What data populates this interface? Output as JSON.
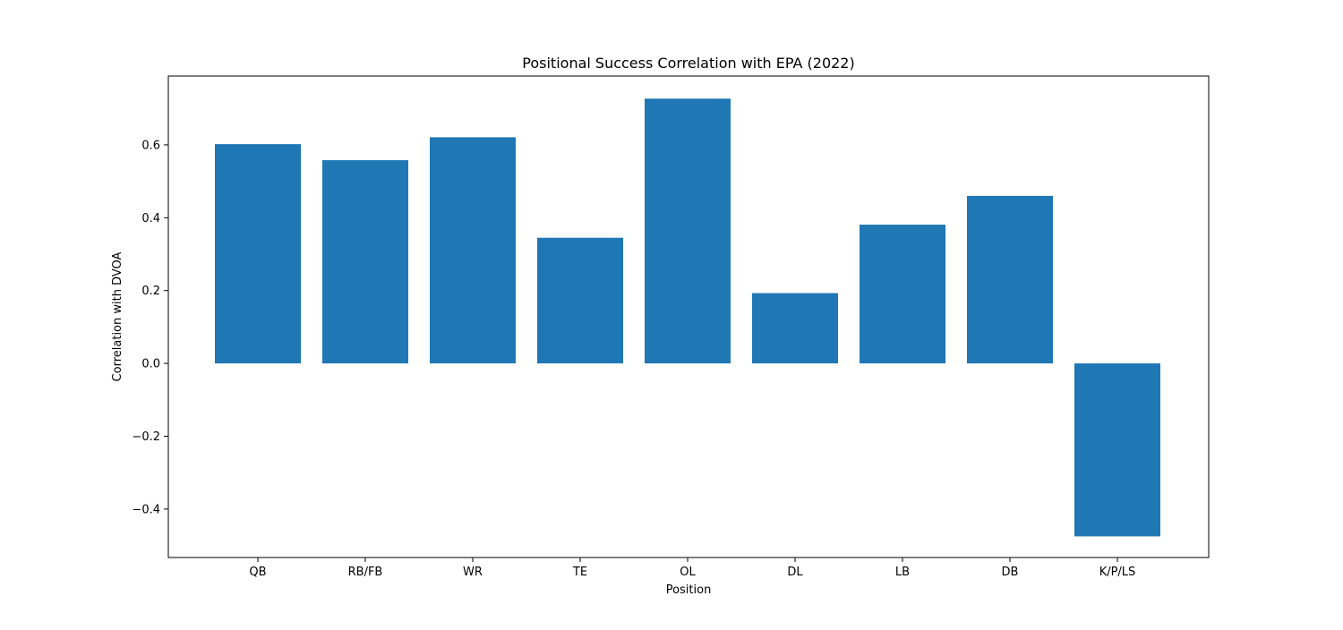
{
  "chart_data": {
    "type": "bar",
    "title": "Positional Success Correlation with EPA (2022)",
    "xlabel": "Position",
    "ylabel": "Correlation with DVOA",
    "categories": [
      "QB",
      "RB/FB",
      "WR",
      "TE",
      "OL",
      "DL",
      "LB",
      "DB",
      "K/P/LS"
    ],
    "values": [
      0.602,
      0.558,
      0.621,
      0.345,
      0.727,
      0.193,
      0.381,
      0.46,
      -0.475
    ],
    "ylim": [
      -0.533,
      0.789
    ],
    "yticks": [
      -0.4,
      -0.2,
      0.0,
      0.2,
      0.4,
      0.6
    ],
    "ytick_labels": [
      "−0.4",
      "−0.2",
      "0.0",
      "0.2",
      "0.4",
      "0.6"
    ],
    "grid": false,
    "legend": "none",
    "bar_color": "#1f77b4"
  }
}
